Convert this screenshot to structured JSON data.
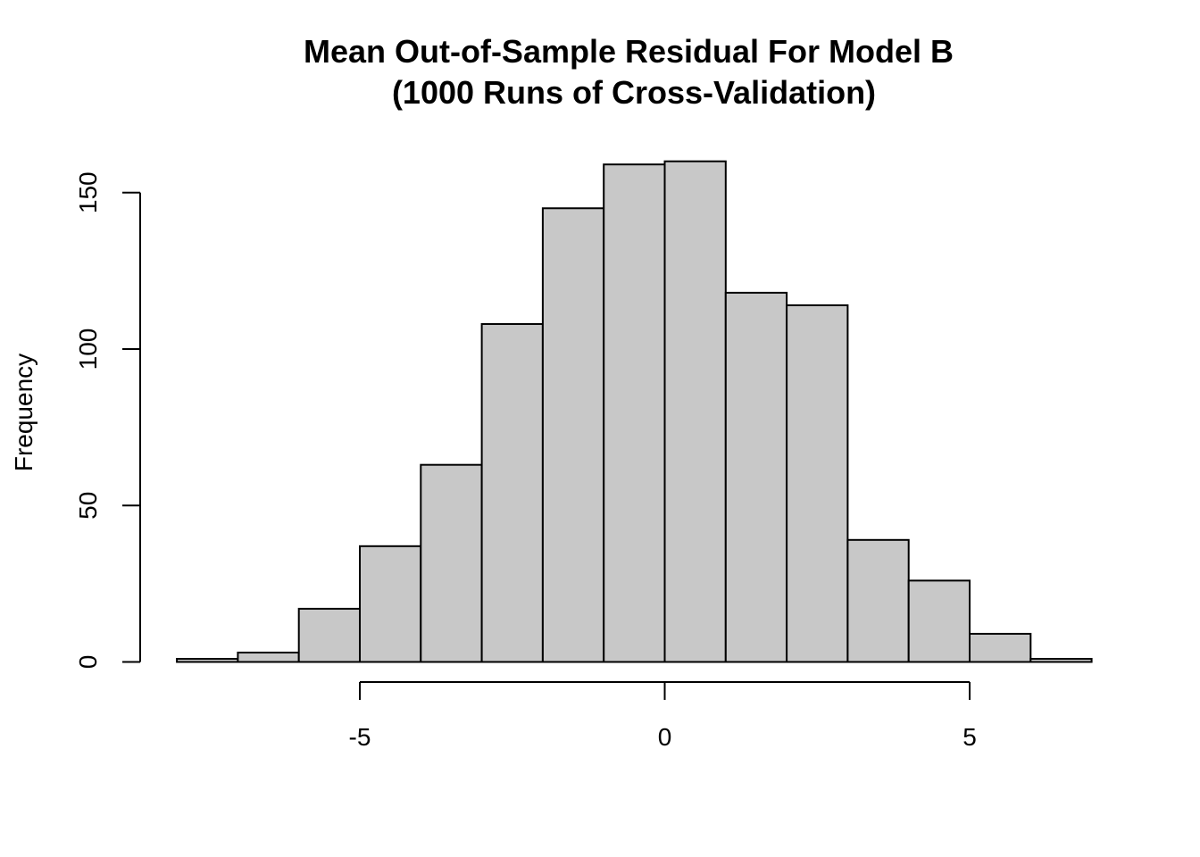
{
  "chart_data": {
    "type": "bar",
    "subtype": "histogram",
    "title": "Mean Out-of-Sample Residual For Model B",
    "subtitle": "(1000 Runs of Cross-Validation)",
    "xlabel": "",
    "ylabel": "Frequency",
    "bin_edges": [
      -8,
      -7,
      -6,
      -5,
      -4,
      -3,
      -2,
      -1,
      0,
      1,
      2,
      3,
      4,
      5,
      6,
      7
    ],
    "values": [
      1,
      3,
      17,
      37,
      63,
      108,
      145,
      159,
      160,
      118,
      114,
      39,
      26,
      9,
      1
    ],
    "x_ticks": [
      -5,
      0,
      5
    ],
    "x_tick_labels": [
      "-5",
      "0",
      "5"
    ],
    "y_ticks": [
      0,
      50,
      100,
      150
    ],
    "y_tick_labels": [
      "0",
      "50",
      "100",
      "150"
    ],
    "xlim": [
      -8,
      7
    ],
    "ylim": [
      0,
      160
    ],
    "bar_color": "#c8c8c8",
    "grid": false,
    "legend": "none"
  }
}
